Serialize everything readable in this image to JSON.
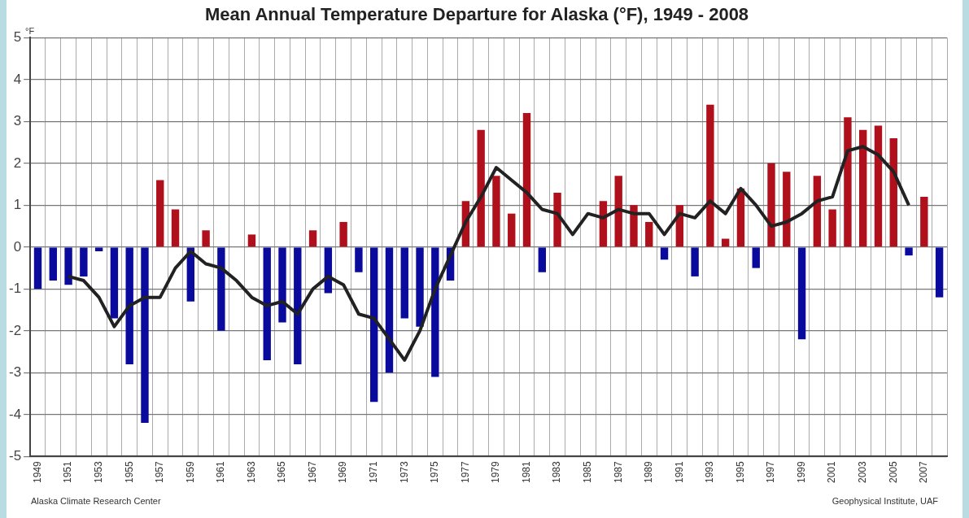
{
  "chart_data": {
    "type": "bar",
    "title": "Mean Annual Temperature Departure for Alaska (°F), 1949 - 2008",
    "ylabel": "°F",
    "categories": [
      "1949",
      null,
      "1951",
      null,
      "1953",
      null,
      "1955",
      null,
      "1957",
      null,
      "1959",
      null,
      "1961",
      null,
      "1963",
      null,
      "1965",
      null,
      "1967",
      null,
      "1969",
      null,
      "1971",
      null,
      "1973",
      null,
      "1975",
      null,
      "1977",
      null,
      "1979",
      null,
      "1981",
      null,
      "1983",
      null,
      "1985",
      null,
      "1987",
      null,
      "1989",
      null,
      "1991",
      null,
      "1993",
      null,
      "1995",
      null,
      "1997",
      null,
      "1999",
      null,
      "2001",
      null,
      "2003",
      null,
      "2005",
      null,
      "2007",
      null
    ],
    "series": [
      {
        "values": [
          -1.0,
          -0.8,
          -0.9,
          -0.7,
          -0.1,
          -1.7,
          -2.8,
          -4.2,
          1.6,
          0.9,
          -1.3,
          0.4,
          -2.0,
          0,
          0.3,
          -2.7,
          -1.8,
          -2.8,
          0.4,
          -1.1,
          0.6,
          -0.6,
          -3.7,
          -3.0,
          -1.7,
          -1.9,
          -3.1,
          -0.8,
          1.1,
          2.8,
          1.7,
          0.8,
          3.2,
          -0.6,
          1.3,
          0,
          0,
          1.1,
          1.7,
          1.0,
          0.6,
          -0.3,
          1.0,
          -0.7,
          3.4,
          0.2,
          1.4,
          -0.5,
          2.0,
          1.8,
          -2.2,
          1.7,
          0.9,
          3.1,
          2.8,
          2.9,
          2.6,
          -0.2,
          1.2,
          -1.2
        ],
        "colors": [
          "#0a0a9c",
          "#0a0a9c",
          "#0a0a9c",
          "#0a0a9c",
          "#0a0a9c",
          "#0a0a9c",
          "#0a0a9c",
          "#0a0a9c",
          "#b0101c",
          "#b0101c",
          "#0a0a9c",
          "#b0101c",
          "#0a0a9c",
          "#b0101c",
          "#b0101c",
          "#0a0a9c",
          "#0a0a9c",
          "#0a0a9c",
          "#b0101c",
          "#0a0a9c",
          "#b0101c",
          "#0a0a9c",
          "#0a0a9c",
          "#0a0a9c",
          "#0a0a9c",
          "#0a0a9c",
          "#0a0a9c",
          "#0a0a9c",
          "#b0101c",
          "#b0101c",
          "#b0101c",
          "#b0101c",
          "#b0101c",
          "#0a0a9c",
          "#b0101c",
          "#b0101c",
          "#b0101c",
          "#b0101c",
          "#b0101c",
          "#b0101c",
          "#b0101c",
          "#0a0a9c",
          "#b0101c",
          "#0a0a9c",
          "#b0101c",
          "#b0101c",
          "#b0101c",
          "#0a0a9c",
          "#b0101c",
          "#b0101c",
          "#0a0a9c",
          "#b0101c",
          "#b0101c",
          "#b0101c",
          "#b0101c",
          "#b0101c",
          "#b0101c",
          "#0a0a9c",
          "#b0101c",
          "#0a0a9c"
        ]
      },
      {
        "type": "line",
        "color": "#222222",
        "values": [
          null,
          null,
          -0.7,
          -0.8,
          -1.2,
          -1.9,
          -1.4,
          -1.2,
          -1.2,
          -0.5,
          -0.1,
          -0.4,
          -0.5,
          -0.8,
          -1.2,
          -1.4,
          -1.3,
          -1.6,
          -1.0,
          -0.7,
          -0.9,
          -1.6,
          -1.7,
          -2.2,
          -2.7,
          -2.0,
          -1.0,
          -0.2,
          0.6,
          1.2,
          1.9,
          1.6,
          1.3,
          0.9,
          0.8,
          0.3,
          0.8,
          0.7,
          0.9,
          0.8,
          0.8,
          0.3,
          0.8,
          0.7,
          1.1,
          0.8,
          1.4,
          1.0,
          0.5,
          0.6,
          0.8,
          1.1,
          1.2,
          2.3,
          2.4,
          2.2,
          1.8,
          1.0,
          null,
          null
        ]
      }
    ],
    "ylim": [
      -5,
      5
    ],
    "yticks": [
      -5,
      -4,
      -3,
      -2,
      -1,
      0,
      1,
      2,
      3,
      4,
      5
    ],
    "grid": true,
    "marker": "none",
    "line_style": "solid",
    "annotations": [
      "Alaska Climate Research Center",
      "Geophysical Institute, UAF"
    ]
  }
}
